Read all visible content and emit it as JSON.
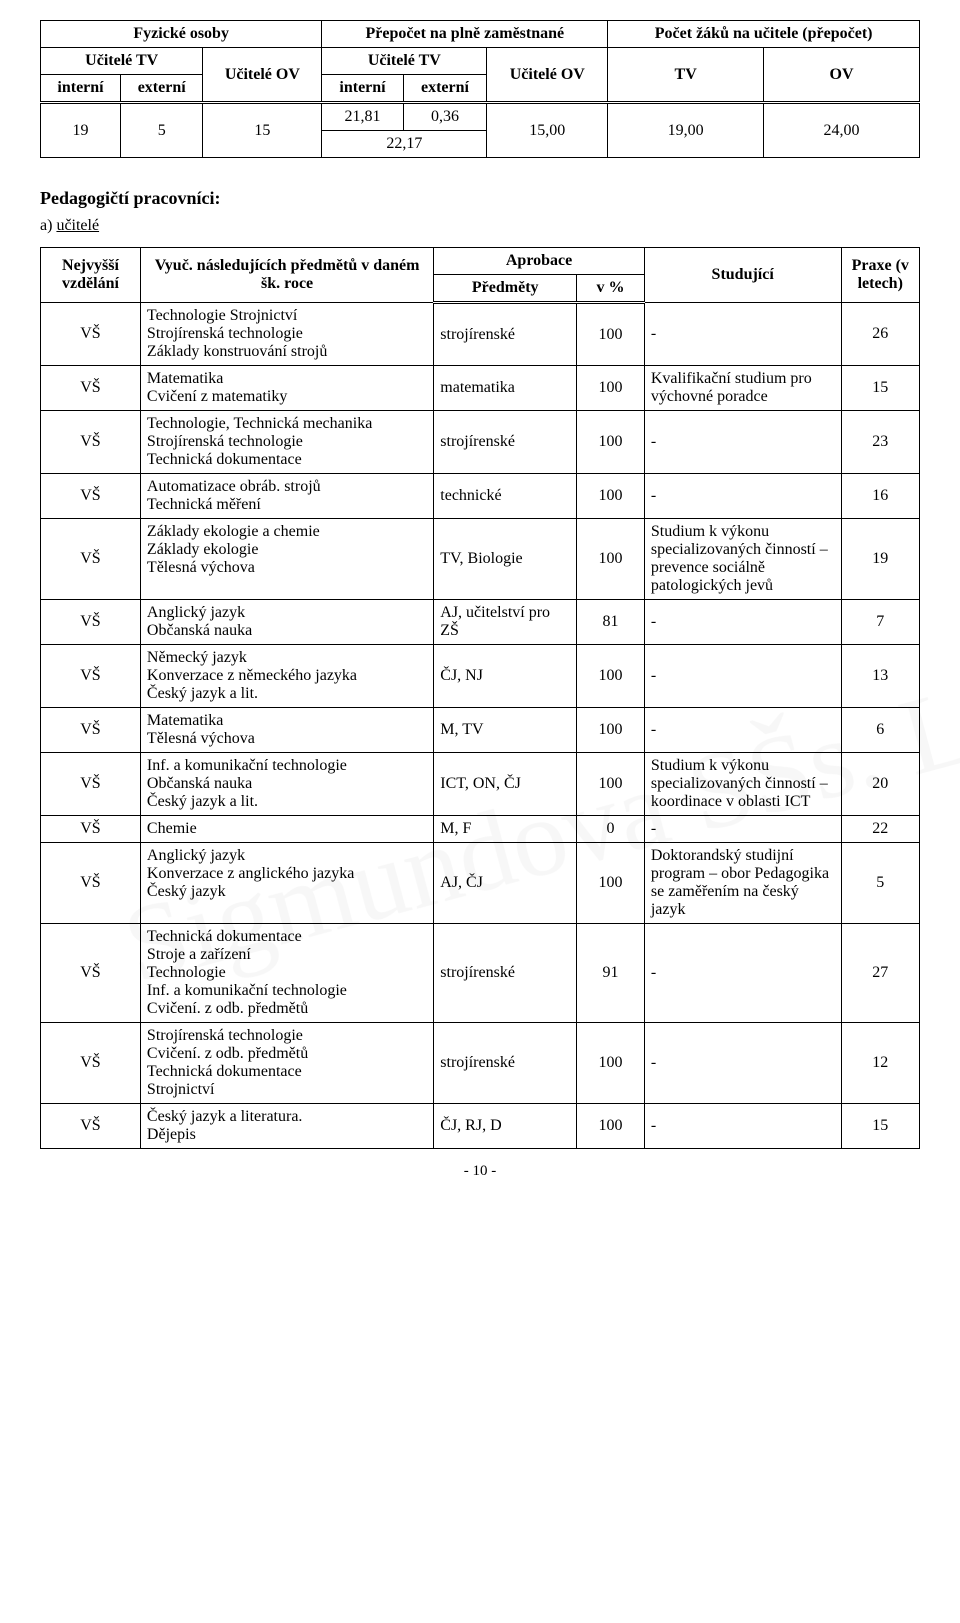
{
  "watermark_text": "Sigmundova SŠs. Lutín",
  "table1": {
    "header_row1": {
      "c1": "Fyzické osoby",
      "c2": "Přepočet na plně zaměstnané",
      "c3": "Počet žáků na učitele (přepočet)"
    },
    "header_row2": {
      "c1": "Učitelé TV",
      "c2": "Učitelé OV",
      "c3": "Učitelé TV",
      "c4": "Učitelé OV",
      "c5": "TV",
      "c6": "OV"
    },
    "header_row3": {
      "c1": "interní",
      "c2": "externí",
      "c3": "interní",
      "c4": "externí"
    },
    "data_row": {
      "c1": "19",
      "c2": "5",
      "c3": "15",
      "c4a": "21,81",
      "c4b": "0,36",
      "c4c": "22,17",
      "c5": "15,00",
      "c6": "19,00",
      "c7": "24,00"
    }
  },
  "section_title": "Pedagogičtí pracovníci:",
  "subsection": "a) učitelé",
  "table2": {
    "headers": {
      "h1": "Nejvyšší vzdělání",
      "h2": "Vyuč. následujících předmětů v daném šk. roce",
      "h3": "Aprobace",
      "h3a": "Předměty",
      "h3b": "v %",
      "h4": "Studující",
      "h5": "Praxe (v letech)"
    },
    "rows": [
      {
        "vz": "VŠ",
        "pred": "Technologie Strojnictví\nStrojírenská technologie\nZáklady konstruování strojů",
        "apr": "strojírenské",
        "pct": "100",
        "stud": "-",
        "praxe": "26"
      },
      {
        "vz": "VŠ",
        "pred": "Matematika\nCvičení z matematiky",
        "apr": "matematika",
        "pct": "100",
        "stud": "Kvalifikační studium pro výchovné poradce",
        "praxe": "15"
      },
      {
        "vz": "VŠ",
        "pred": "Technologie, Technická mechanika\nStrojírenská technologie\nTechnická dokumentace",
        "apr": "strojírenské",
        "pct": "100",
        "stud": "-",
        "praxe": "23"
      },
      {
        "vz": "VŠ",
        "pred": "Automatizace obráb. strojů\nTechnická měření",
        "apr": "technické",
        "pct": "100",
        "stud": "-",
        "praxe": "16"
      },
      {
        "vz": "VŠ",
        "pred": "Základy ekologie a chemie\nZáklady ekologie\nTělesná výchova",
        "apr": "TV, Biologie",
        "pct": "100",
        "stud": "Studium k výkonu specializovaných činností – prevence sociálně patologických jevů",
        "praxe": "19"
      },
      {
        "vz": "VŠ",
        "pred": "Anglický jazyk\nObčanská nauka",
        "apr": "AJ, učitelství pro ZŠ",
        "pct": "81",
        "stud": "-",
        "praxe": "7"
      },
      {
        "vz": "VŠ",
        "pred": "Německý jazyk\nKonverzace z německého jazyka\nČeský jazyk a lit.",
        "apr": "ČJ, NJ",
        "pct": "100",
        "stud": "-",
        "praxe": "13"
      },
      {
        "vz": "VŠ",
        "pred": "Matematika\nTělesná výchova",
        "apr": "M, TV",
        "pct": "100",
        "stud": "-",
        "praxe": "6"
      },
      {
        "vz": "VŠ",
        "pred": "Inf. a komunikační technologie\nObčanská nauka\nČeský jazyk a lit.",
        "apr": "ICT, ON, ČJ",
        "pct": "100",
        "stud": "Studium k výkonu specializovaných činností – koordinace v oblasti ICT",
        "praxe": "20"
      },
      {
        "vz": "VŠ",
        "pred": "Chemie",
        "apr": "M, F",
        "pct": "0",
        "stud": "-",
        "praxe": "22"
      },
      {
        "vz": "VŠ",
        "pred": "Anglický jazyk\nKonverzace z anglického jazyka\nČeský jazyk",
        "apr": "AJ, ČJ",
        "pct": "100",
        "stud": "Doktorandský studijní program – obor Pedagogika  se zaměřením na český jazyk",
        "praxe": "5"
      },
      {
        "vz": "VŠ",
        "pred": "Technická dokumentace\nStroje a zařízení\nTechnologie\nInf. a komunikační technologie\nCvičení. z odb. předmětů",
        "apr": "strojírenské",
        "pct": "91",
        "stud": "-",
        "praxe": "27"
      },
      {
        "vz": "VŠ",
        "pred": "Strojírenská technologie\nCvičení. z odb. předmětů\nTechnická dokumentace\nStrojnictví",
        "apr": "strojírenské",
        "pct": "100",
        "stud": "-",
        "praxe": "12"
      },
      {
        "vz": "VŠ",
        "pred": "Český jazyk a literatura.\nDějepis",
        "apr": "ČJ, RJ, D",
        "pct": "100",
        "stud": "-",
        "praxe": "15"
      }
    ]
  },
  "page_number": "- 10 -"
}
